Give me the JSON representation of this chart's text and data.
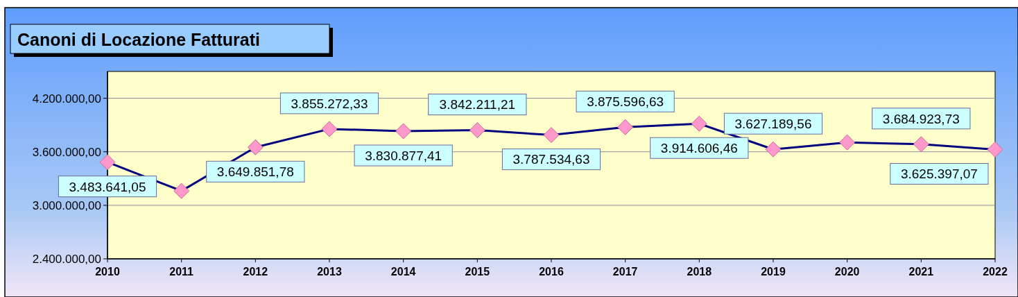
{
  "chart_data": {
    "type": "line",
    "title": "Canoni di Locazione Fatturati",
    "categories": [
      "2010",
      "2011",
      "2012",
      "2013",
      "2014",
      "2015",
      "2016",
      "2017",
      "2018",
      "2019",
      "2020",
      "2021",
      "2022"
    ],
    "values": [
      3483641.05,
      3161000,
      3649851.78,
      3855272.33,
      3830877.41,
      3842211.21,
      3787534.63,
      3875596.63,
      3914606.46,
      3627189.56,
      3705000,
      3684923.73,
      3625397.07
    ],
    "value_labels": [
      "3.483.641,05",
      null,
      "3.649.851,78",
      "3.855.272,33",
      "3.830.877,41",
      "3.842.211,21",
      "3.787.534,63",
      "3.875.596,63",
      "3.914.606,46",
      "3.627.189,56",
      null,
      "3.684.923,73",
      "3.625.397,07"
    ],
    "color": "#000080",
    "marker": "diamond",
    "grid": "y",
    "ylim": [
      2400000,
      4500000
    ],
    "yticks": [
      {
        "value": 2400000,
        "label": "2.400.000,00"
      },
      {
        "value": 3000000,
        "label": "3.000.000,00"
      },
      {
        "value": 3600000,
        "label": "3.600.000,00"
      },
      {
        "value": 4200000,
        "label": "4.200.000,00"
      }
    ]
  }
}
